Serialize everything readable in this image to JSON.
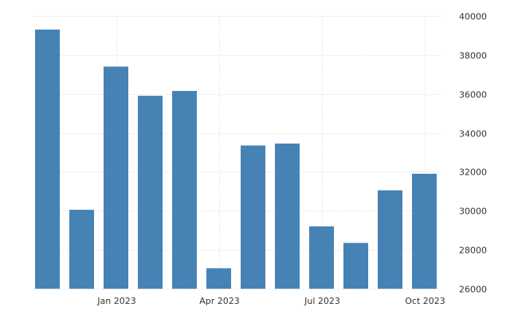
{
  "chart_data": {
    "type": "bar",
    "categories": [
      "2022-11",
      "2022-12",
      "2023-01",
      "2023-02",
      "2023-03",
      "2023-04",
      "2023-05",
      "2023-06",
      "2023-07",
      "2023-08",
      "2023-09",
      "2023-10"
    ],
    "values": [
      39300,
      30050,
      37400,
      35900,
      36150,
      27050,
      33350,
      33450,
      29200,
      28350,
      31050,
      31900
    ],
    "ylim": [
      26000,
      40000
    ],
    "y_ticks": [
      26000,
      28000,
      30000,
      32000,
      34000,
      36000,
      38000,
      40000
    ],
    "y_tick_labels": [
      "26000",
      "28000",
      "30000",
      "32000",
      "34000",
      "36000",
      "38000",
      "40000"
    ],
    "x_ticks": [
      {
        "label": "Jan 2023",
        "category": "2023-01"
      },
      {
        "label": "Apr 2023",
        "category": "2023-04"
      },
      {
        "label": "Jul 2023",
        "category": "2023-07"
      },
      {
        "label": "Oct 2023",
        "category": "2023-10"
      }
    ],
    "grid": true,
    "y_axis_side": "right",
    "bar_color": "#4682b4",
    "grid_color": "#d9d9d9",
    "title": "",
    "xlabel": "",
    "ylabel": ""
  }
}
